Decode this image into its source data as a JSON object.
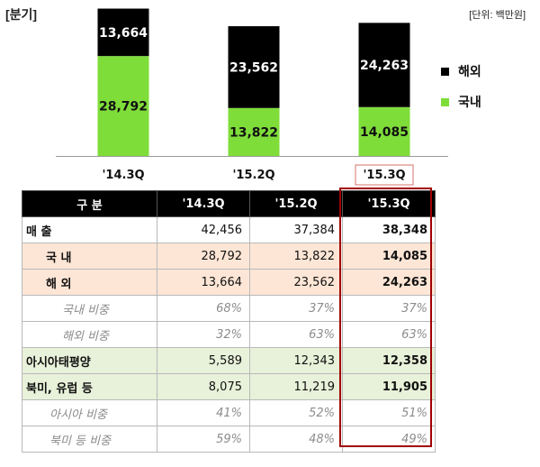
{
  "header": {
    "period_label": "[분기]",
    "unit_label": "[단위: 백만원]"
  },
  "legend": {
    "items": [
      {
        "label": "해외",
        "color": "#000000"
      },
      {
        "label": "국내",
        "color": "#7fdd3a"
      }
    ]
  },
  "chart_data": {
    "type": "bar",
    "stacked": true,
    "categories": [
      "'14.3Q",
      "'15.2Q",
      "'15.3Q"
    ],
    "series": [
      {
        "name": "국내",
        "color": "#7fdd3a",
        "values": [
          28792,
          13822,
          14085
        ]
      },
      {
        "name": "해외",
        "color": "#000000",
        "values": [
          13664,
          23562,
          24263
        ]
      }
    ],
    "highlight_category": "'15.3Q",
    "legend_position": "right"
  },
  "table": {
    "headers": [
      "구 분",
      "'14.3Q",
      "'15.2Q",
      "'15.3Q"
    ],
    "rows": [
      {
        "label": "매 출",
        "values": [
          "42,456",
          "37,384",
          "38,348"
        ]
      },
      {
        "label": "국 내",
        "values": [
          "28,792",
          "13,822",
          "14,085"
        ]
      },
      {
        "label": "해 외",
        "values": [
          "13,664",
          "23,562",
          "24,263"
        ]
      },
      {
        "label": "국내 비중",
        "values": [
          "68%",
          "37%",
          "37%"
        ]
      },
      {
        "label": "해외 비중",
        "values": [
          "32%",
          "63%",
          "63%"
        ]
      },
      {
        "label": "아시아태평양",
        "values": [
          "5,589",
          "12,343",
          "12,358"
        ]
      },
      {
        "label": "북미, 유럽 등",
        "values": [
          "8,075",
          "11,219",
          "11,905"
        ]
      },
      {
        "label": "아시아 비중",
        "values": [
          "41%",
          "52%",
          "51%"
        ]
      },
      {
        "label": "북미 등 비중",
        "values": [
          "59%",
          "48%",
          "49%"
        ]
      }
    ]
  }
}
